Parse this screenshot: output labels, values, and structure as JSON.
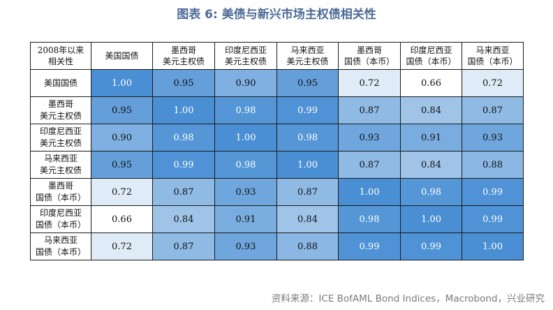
{
  "figure": {
    "title": "图表 6:  美债与新兴市场主权债相关性",
    "source": "资料来源：ICE BofAML Bond Indices，Macrobond，兴业研究"
  },
  "chart_data": {
    "type": "heatmap",
    "title": "图表 6:  美债与新兴市场主权债相关性",
    "corner_label": "2008年以来\n相关性",
    "categories": [
      "美国国债",
      "墨西哥\n美元主权债",
      "印度尼西亚\n美元主权债",
      "马来西亚\n美元主权债",
      "墨西哥\n国债（本币）",
      "印度尼西亚\n国债（本币）",
      "马来西亚\n国债（本币）"
    ],
    "rows": [
      {
        "label": "美国国债",
        "values": [
          "1.00",
          "0.95",
          "0.90",
          "0.95",
          "0.72",
          "0.66",
          "0.72"
        ]
      },
      {
        "label": "墨西哥\n美元主权债",
        "values": [
          "0.95",
          "1.00",
          "0.98",
          "0.99",
          "0.87",
          "0.84",
          "0.87"
        ]
      },
      {
        "label": "印度尼西亚\n美元主权债",
        "values": [
          "0.90",
          "0.98",
          "1.00",
          "0.98",
          "0.93",
          "0.91",
          "0.93"
        ]
      },
      {
        "label": "马来西亚\n美元主权债",
        "values": [
          "0.95",
          "0.99",
          "0.98",
          "1.00",
          "0.87",
          "0.84",
          "0.88"
        ]
      },
      {
        "label": "墨西哥\n国债（本币）",
        "values": [
          "0.72",
          "0.87",
          "0.93",
          "0.87",
          "1.00",
          "0.98",
          "0.99"
        ]
      },
      {
        "label": "印度尼西亚\n国债（本币）",
        "values": [
          "0.66",
          "0.84",
          "0.91",
          "0.84",
          "0.98",
          "1.00",
          "0.99"
        ]
      },
      {
        "label": "马来西亚\n国债（本币）",
        "values": [
          "0.72",
          "0.87",
          "0.93",
          "0.88",
          "0.99",
          "0.99",
          "1.00"
        ]
      }
    ],
    "color_scale": {
      "low": "#ffffff",
      "high": "#4a8fd4"
    }
  }
}
